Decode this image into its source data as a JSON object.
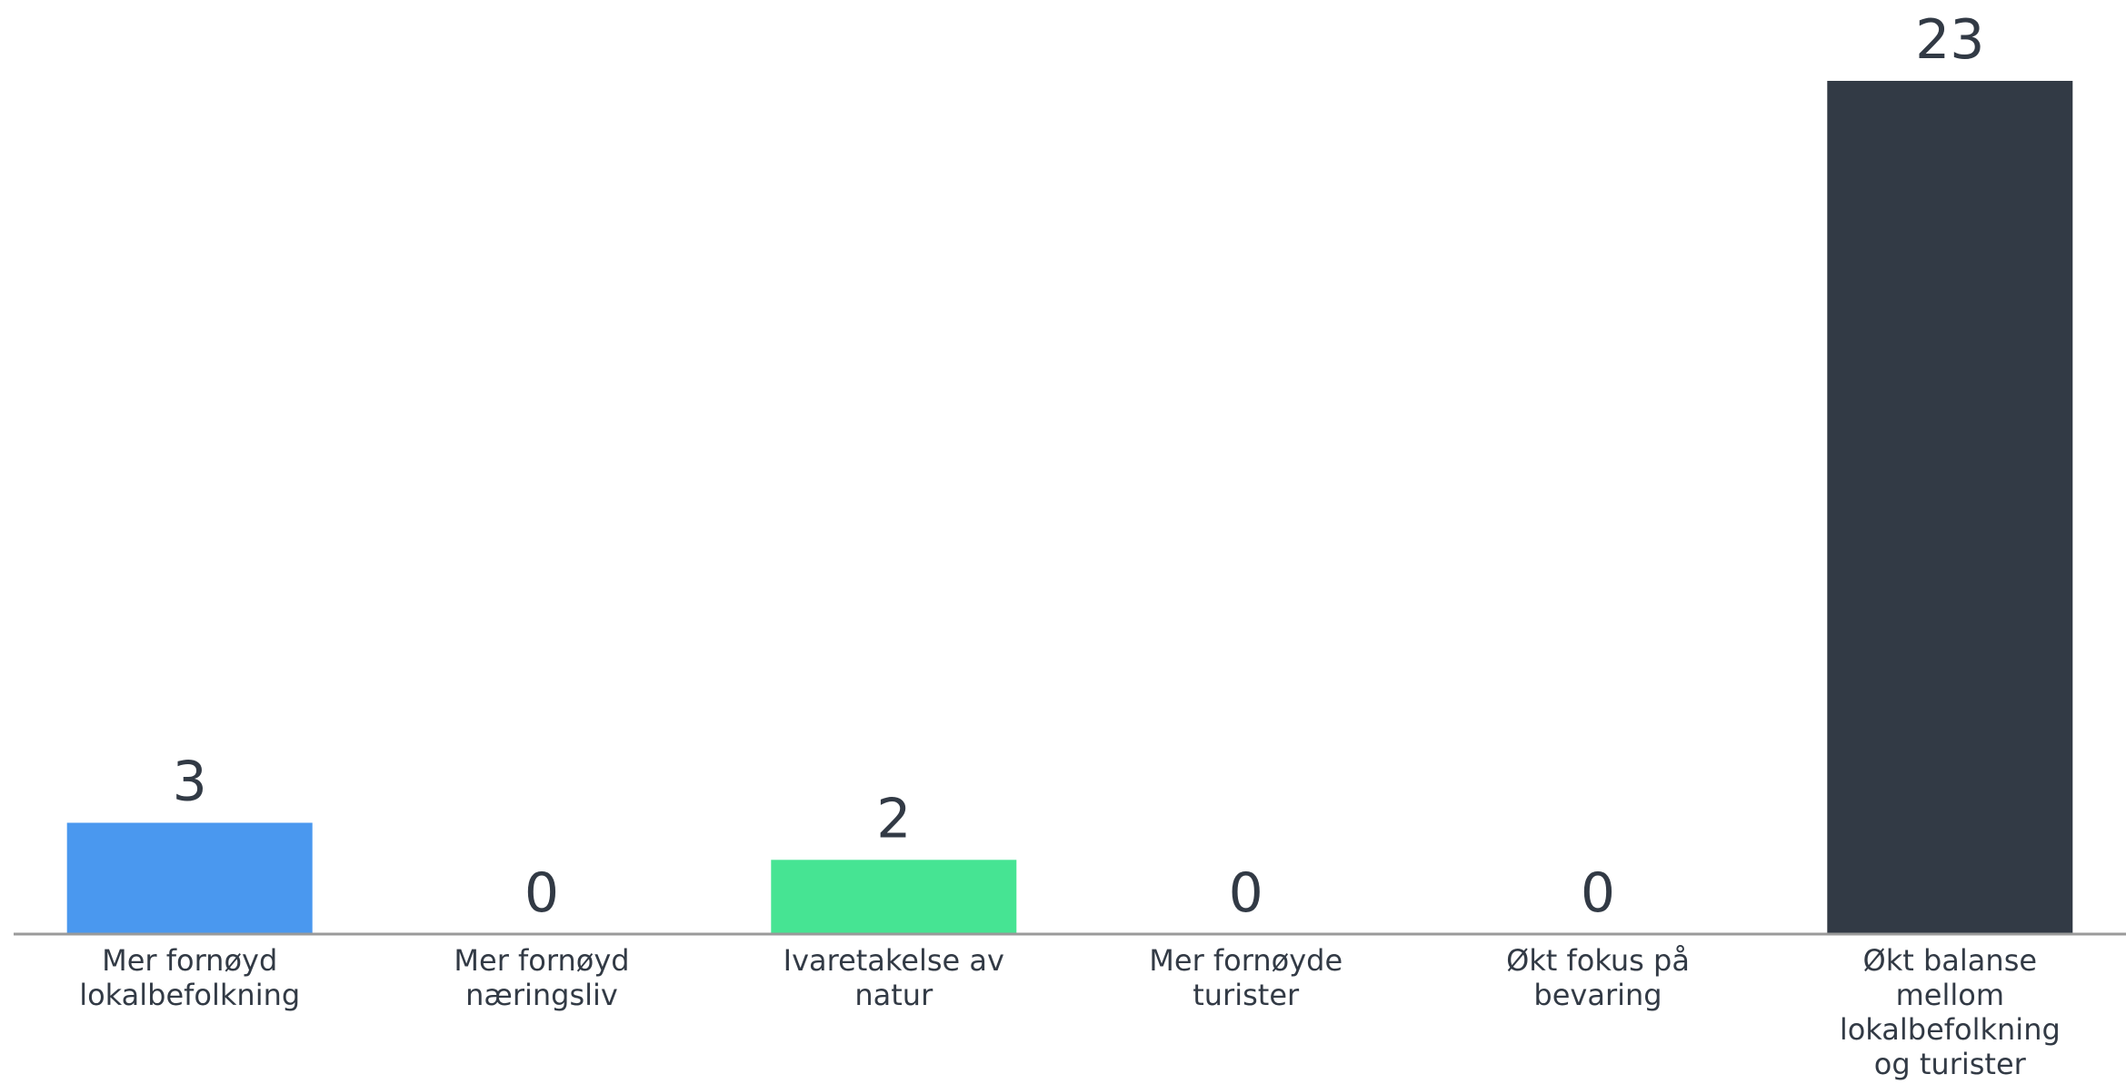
{
  "chart_data": {
    "type": "bar",
    "categories": [
      [
        "Mer fornøyd",
        "lokalbefolkning"
      ],
      [
        "Mer fornøyd",
        "næringsliv"
      ],
      [
        "Ivaretakelse av",
        "natur"
      ],
      [
        "Mer fornøyde",
        "turister"
      ],
      [
        "Økt fokus på",
        "bevaring"
      ],
      [
        "Økt balanse",
        "mellom",
        "lokalbefolkning",
        "og turister"
      ]
    ],
    "values": [
      3,
      0,
      2,
      0,
      0,
      23
    ],
    "colors": [
      "#4a98ef",
      "#4a98ef",
      "#46e493",
      "#46e493",
      "#323a45",
      "#323a45"
    ],
    "ylim": [
      0,
      23
    ],
    "title": "",
    "xlabel": "",
    "ylabel": "",
    "grid": false,
    "legend": "none",
    "axis_color": "#9a9a9a",
    "text_color": "#323a45"
  }
}
